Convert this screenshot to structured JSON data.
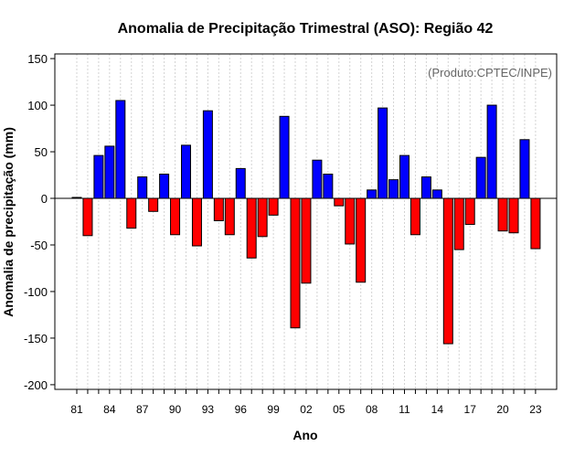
{
  "chart_data": {
    "type": "bar",
    "title": "Anomalia de Precipitação Trimestral (ASO): Região 42",
    "xlabel": "Ano",
    "ylabel": "Anomalia de precipitação (mm)",
    "annotation": "(Produto:CPTEC/INPE)",
    "ylim": [
      -205,
      155
    ],
    "y_ticks": [
      -200,
      -150,
      -100,
      -50,
      0,
      50,
      100,
      150
    ],
    "x_tick_labels": [
      "81",
      "84",
      "87",
      "90",
      "93",
      "96",
      "99",
      "02",
      "05",
      "08",
      "11",
      "14",
      "17",
      "20",
      "23"
    ],
    "x_tick_years": [
      1981,
      1984,
      1987,
      1990,
      1993,
      1996,
      1999,
      2002,
      2005,
      2008,
      2011,
      2014,
      2017,
      2020,
      2023
    ],
    "grid": "vertical dotted",
    "years": [
      1981,
      1982,
      1983,
      1984,
      1985,
      1986,
      1987,
      1988,
      1989,
      1990,
      1991,
      1992,
      1993,
      1994,
      1995,
      1996,
      1997,
      1998,
      1999,
      2000,
      2001,
      2002,
      2003,
      2004,
      2005,
      2006,
      2007,
      2008,
      2009,
      2010,
      2011,
      2012,
      2013,
      2014,
      2015,
      2016,
      2017,
      2018,
      2019,
      2020,
      2021,
      2022,
      2023
    ],
    "values": [
      1,
      -40,
      46,
      56,
      105,
      -32,
      23,
      -14,
      26,
      -39,
      57,
      -51,
      94,
      -24,
      -39,
      32,
      -64,
      -41,
      -18,
      88,
      -139,
      -91,
      41,
      26,
      -8,
      -49,
      -90,
      9,
      97,
      20,
      46,
      -39,
      23,
      9,
      -156,
      -55,
      -28,
      44,
      100,
      -35,
      -37,
      63,
      -54
    ],
    "colors": {
      "positive": "#0000ff",
      "negative": "#ff0000",
      "bar_stroke": "#000000",
      "zero_line": "#000000",
      "grid": "#d3d3d3",
      "annotation": "#666666"
    }
  }
}
